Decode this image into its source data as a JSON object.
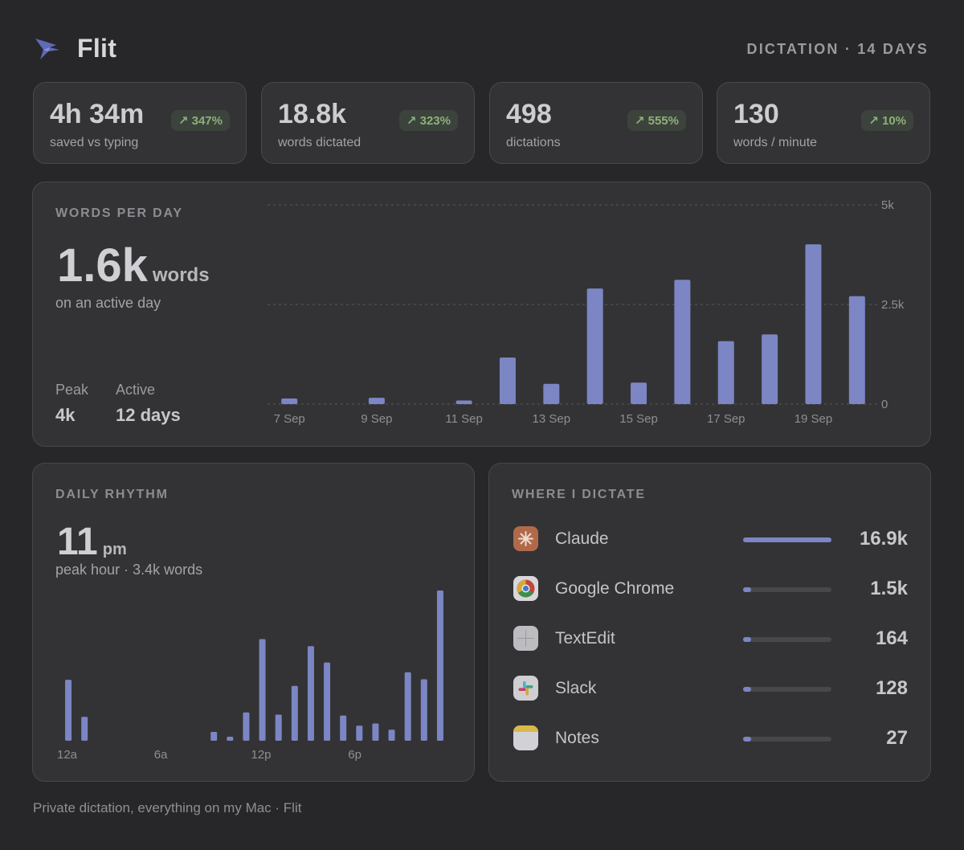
{
  "header": {
    "app_name": "Flit",
    "range": "DICTATION · 14 DAYS"
  },
  "stats": [
    {
      "value": "4h 34m",
      "label": "saved vs typing",
      "badge": "↗ 347%"
    },
    {
      "value": "18.8k",
      "label": "words dictated",
      "badge": "↗ 323%"
    },
    {
      "value": "498",
      "label": "dictations",
      "badge": "↗ 555%"
    },
    {
      "value": "130",
      "label": "words / minute",
      "badge": "↗ 10%"
    }
  ],
  "words_per_day": {
    "title": "WORDS PER DAY",
    "big_value": "1.6k",
    "unit": "words",
    "subtitle": "on an active day",
    "peak_label": "Peak",
    "peak_value": "4k",
    "active_label": "Active",
    "active_value": "12 days"
  },
  "daily_rhythm": {
    "title": "DAILY RHYTHM",
    "big_value": "11",
    "unit": "pm",
    "subtitle": "peak hour · 3.4k words"
  },
  "where": {
    "title": "WHERE I DICTATE",
    "apps": [
      {
        "name": "Claude",
        "value": "16.9k",
        "share": 1.0,
        "icon": "claude-icon"
      },
      {
        "name": "Google Chrome",
        "value": "1.5k",
        "share": 0.089,
        "icon": "chrome-icon"
      },
      {
        "name": "TextEdit",
        "value": "164",
        "share": 0.01,
        "icon": "textedit-icon"
      },
      {
        "name": "Slack",
        "value": "128",
        "share": 0.008,
        "icon": "slack-icon"
      },
      {
        "name": "Notes",
        "value": "27",
        "share": 0.002,
        "icon": "notes-icon"
      }
    ]
  },
  "footer": "Private dictation, everything on my Mac · Flit",
  "colors": {
    "bar": "#7c86c4",
    "badge_text": "#8eb07a",
    "background": "#272729",
    "card": "#333335"
  },
  "chart_data": [
    {
      "type": "bar",
      "name": "words-per-day",
      "x": [
        "7 Sep",
        "8 Sep",
        "9 Sep",
        "10 Sep",
        "11 Sep",
        "12 Sep",
        "13 Sep",
        "14 Sep",
        "15 Sep",
        "16 Sep",
        "17 Sep",
        "18 Sep",
        "19 Sep",
        "20 Sep"
      ],
      "xtick_labels": [
        "7 Sep",
        "9 Sep",
        "11 Sep",
        "13 Sep",
        "15 Sep",
        "17 Sep",
        "19 Sep"
      ],
      "values": [
        140,
        0,
        160,
        0,
        90,
        1170,
        510,
        2900,
        540,
        3120,
        1580,
        1750,
        4010,
        2710
      ],
      "yticks": [
        0,
        2500,
        5000
      ],
      "ytick_labels": [
        "0",
        "2.5k",
        "5k"
      ],
      "ylim": [
        0,
        5000
      ],
      "grid": true
    },
    {
      "type": "bar",
      "name": "daily-rhythm",
      "x": [
        0,
        1,
        2,
        3,
        4,
        5,
        6,
        7,
        8,
        9,
        10,
        11,
        12,
        13,
        14,
        15,
        16,
        17,
        18,
        19,
        20,
        21,
        22,
        23
      ],
      "xtick_labels": [
        "12a",
        "6a",
        "12p",
        "6p"
      ],
      "xtick_positions": [
        0,
        6,
        12,
        18
      ],
      "values": [
        1380,
        540,
        0,
        0,
        0,
        0,
        0,
        0,
        0,
        200,
        90,
        640,
        2300,
        590,
        1240,
        2140,
        1770,
        570,
        340,
        390,
        250,
        1550,
        1390,
        3400
      ],
      "ylim": [
        0,
        3400
      ],
      "grid": false
    }
  ]
}
